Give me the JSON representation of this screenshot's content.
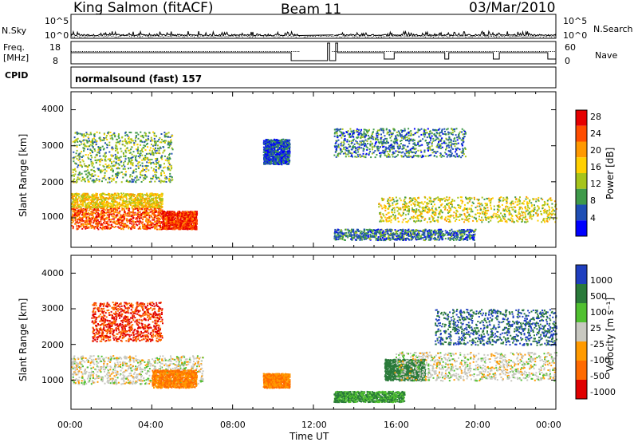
{
  "header": {
    "station": "King Salmon (fitACF)",
    "beam": "Beam 11",
    "date": "03/Mar/2010"
  },
  "left_labels": {
    "nsky": "N.Sky",
    "freq": "Freq.",
    "freq_unit": "[MHz]",
    "cpid": "CPID"
  },
  "right_labels": {
    "nsearch": "N.Search",
    "nave": "Nave"
  },
  "top_panel": {
    "noise_ticks_left": [
      "10^5",
      "10^0"
    ],
    "noise_ticks_right": [
      "10^5",
      "10^0"
    ],
    "freq_ticks": [
      "18",
      "8"
    ],
    "nave_ticks": [
      "60",
      "0"
    ],
    "cpid_text": "normalsound (fast) 157"
  },
  "time_axis": {
    "label": "Time UT",
    "ticks": [
      "00:00",
      "04:00",
      "08:00",
      "12:00",
      "16:00",
      "20:00",
      "00:00"
    ]
  },
  "power_panel": {
    "ylabel": "Slant Range [km]",
    "yticks": [
      "4000",
      "3000",
      "2000",
      "1000"
    ],
    "colorbar_label": "Power [dB]",
    "colorbar_ticks": [
      "28",
      "24",
      "20",
      "16",
      "12",
      "8",
      "4"
    ],
    "colors": [
      "#e60000",
      "#ff4d00",
      "#ff9900",
      "#ffd000",
      "#a6c41a",
      "#3f9a4a",
      "#1f4fb5",
      "#0000ff"
    ]
  },
  "velocity_panel": {
    "ylabel": "Slant Range [km]",
    "yticks": [
      "4000",
      "3000",
      "2000",
      "1000"
    ],
    "colorbar_label": "Velocity [m s⁻¹]",
    "colorbar_ticks": [
      "1000",
      "500",
      "100",
      "25",
      "-25",
      "-100",
      "-500",
      "-1000"
    ],
    "colors": [
      "#1f3fbf",
      "#2a7a3a",
      "#50c030",
      "#c8c8c0",
      "#ff9a00",
      "#ff6a00",
      "#e00000"
    ]
  },
  "chart_data": [
    {
      "type": "heatmap",
      "title": "Power",
      "xlabel": "Time UT",
      "ylabel": "Slant Range [km]",
      "x_range_hours": [
        0,
        24
      ],
      "ylim": [
        180,
        4500
      ],
      "colorbar": {
        "label": "Power [dB]",
        "range": [
          0,
          32
        ]
      },
      "scatter_regions": [
        {
          "t": [
            0.0,
            4.5
          ],
          "range_km": [
            700,
            1300
          ],
          "dB": 26
        },
        {
          "t": [
            0.0,
            4.5
          ],
          "range_km": [
            1300,
            1700
          ],
          "dB": 18
        },
        {
          "t": [
            4.5,
            6.2
          ],
          "range_km": [
            700,
            1200
          ],
          "dB": 28
        },
        {
          "t": [
            15.2,
            24.0
          ],
          "range_km": [
            900,
            1600
          ],
          "dB": 16
        },
        {
          "t": [
            0.0,
            5.0
          ],
          "range_km": [
            2000,
            3400
          ],
          "dB": 12
        },
        {
          "t": [
            9.5,
            10.8
          ],
          "range_km": [
            2500,
            3200
          ],
          "dB": 6
        },
        {
          "t": [
            13.0,
            19.5
          ],
          "range_km": [
            2700,
            3500
          ],
          "dB": 8
        },
        {
          "t": [
            13.0,
            20.0
          ],
          "range_km": [
            400,
            700
          ],
          "dB": 8
        }
      ]
    },
    {
      "type": "heatmap",
      "title": "Velocity",
      "xlabel": "Time UT",
      "ylabel": "Slant Range [km]",
      "x_range_hours": [
        0,
        24
      ],
      "ylim": [
        180,
        4500
      ],
      "colorbar": {
        "label": "Velocity [m s⁻¹]",
        "range": [
          -1000,
          1000
        ]
      },
      "scatter_regions": [
        {
          "t": [
            0.0,
            6.5
          ],
          "range_km": [
            900,
            1700
          ],
          "velocity": 0
        },
        {
          "t": [
            1.0,
            4.5
          ],
          "range_km": [
            2100,
            3200
          ],
          "velocity": -500
        },
        {
          "t": [
            4.0,
            6.2
          ],
          "range_km": [
            800,
            1300
          ],
          "velocity": -100
        },
        {
          "t": [
            9.5,
            10.8
          ],
          "range_km": [
            800,
            1200
          ],
          "velocity": -100
        },
        {
          "t": [
            15.5,
            17.5
          ],
          "range_km": [
            1000,
            1600
          ],
          "velocity": 300
        },
        {
          "t": [
            16.0,
            24.0
          ],
          "range_km": [
            1000,
            1800
          ],
          "velocity": 0
        },
        {
          "t": [
            18.0,
            24.0
          ],
          "range_km": [
            2000,
            3000
          ],
          "velocity": 500
        },
        {
          "t": [
            13.0,
            16.5
          ],
          "range_km": [
            400,
            700
          ],
          "velocity": 100
        }
      ]
    }
  ]
}
